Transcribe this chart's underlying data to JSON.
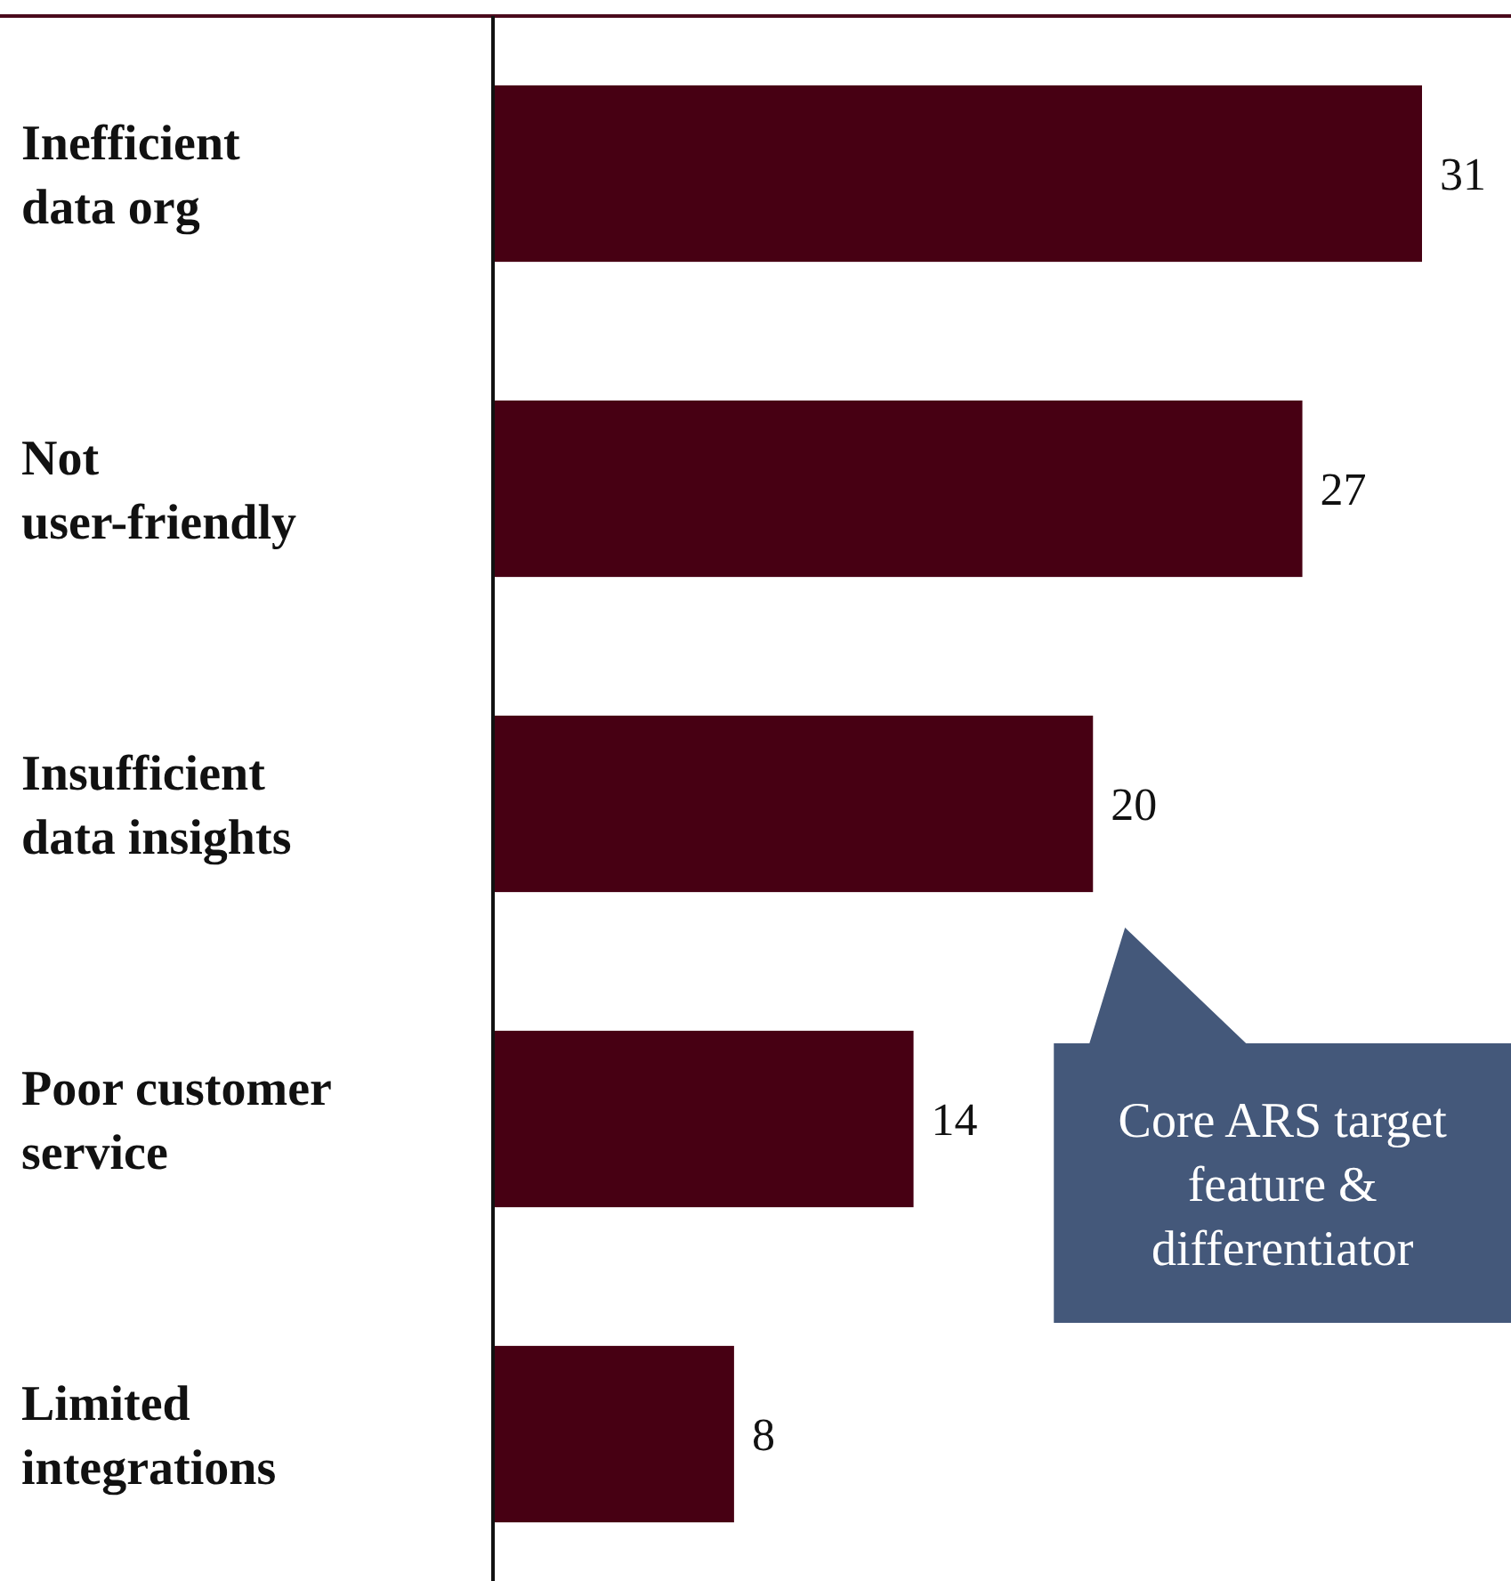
{
  "chart_data": {
    "type": "bar",
    "orientation": "horizontal",
    "categories": [
      "Inefficient data org",
      "Not user-friendly",
      "Insufficient data insights",
      "Poor customer service",
      "Limited integrations"
    ],
    "values": [
      31,
      27,
      20,
      14,
      8
    ],
    "color": "#470013",
    "data_labels": true,
    "annotations": [
      "Core ARS target feature & differentiator"
    ]
  }
}
